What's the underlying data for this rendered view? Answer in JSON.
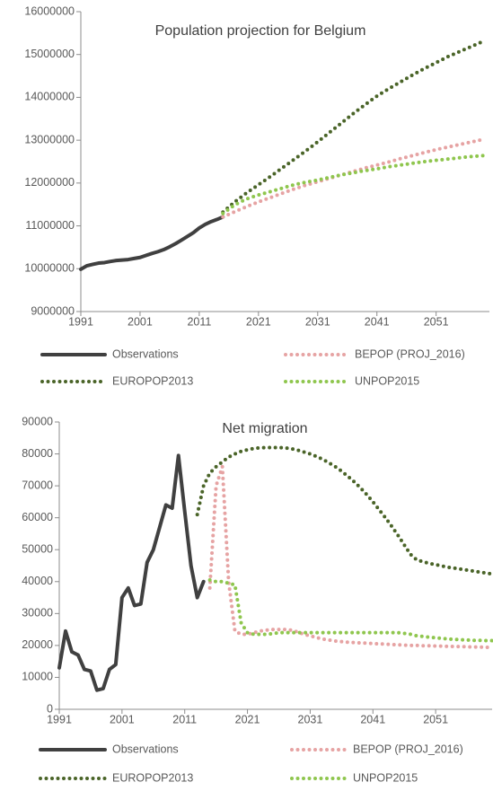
{
  "chart_data": [
    {
      "type": "line",
      "title": "Population projection for Belgium",
      "xlim": [
        1991,
        2060
      ],
      "xticks": [
        1991,
        2001,
        2011,
        2021,
        2031,
        2041,
        2051
      ],
      "ylim": [
        9000000,
        16000000
      ],
      "yticks": [
        9000000,
        10000000,
        11000000,
        12000000,
        13000000,
        14000000,
        15000000,
        16000000
      ],
      "grid": false,
      "legend": "bottom",
      "series": [
        {
          "name": "Observations",
          "color": "#404040",
          "line_style": "solid",
          "x": [
            1991,
            1992,
            1993,
            1994,
            1995,
            1996,
            1997,
            1998,
            1999,
            2000,
            2001,
            2002,
            2003,
            2004,
            2005,
            2006,
            2007,
            2008,
            2009,
            2010,
            2011,
            2012,
            2013,
            2014,
            2015
          ],
          "values": [
            9987000,
            10068000,
            10101000,
            10131000,
            10143000,
            10170000,
            10192000,
            10203000,
            10214000,
            10239000,
            10263000,
            10310000,
            10356000,
            10396000,
            10446000,
            10511000,
            10585000,
            10667000,
            10753000,
            10840000,
            10951000,
            11035000,
            11099000,
            11150000,
            11209000
          ]
        },
        {
          "name": "BEPOP (PROJ_2016)",
          "color": "#e6a3a3",
          "line_style": "dotted",
          "x": [
            2015,
            2017,
            2019,
            2021,
            2023,
            2025,
            2027,
            2029,
            2031,
            2033,
            2035,
            2037,
            2039,
            2041,
            2043,
            2045,
            2047,
            2049,
            2051,
            2053,
            2055,
            2057,
            2059
          ],
          "values": [
            11209000,
            11330000,
            11450000,
            11560000,
            11660000,
            11760000,
            11860000,
            11950000,
            12030000,
            12110000,
            12190000,
            12270000,
            12350000,
            12420000,
            12490000,
            12570000,
            12640000,
            12710000,
            12780000,
            12840000,
            12900000,
            12960000,
            13020000
          ]
        },
        {
          "name": "EUROPOP2013",
          "color": "#4a6428",
          "line_style": "dotted",
          "x": [
            2015,
            2017,
            2019,
            2021,
            2023,
            2025,
            2027,
            2029,
            2031,
            2033,
            2035,
            2037,
            2039,
            2041,
            2043,
            2045,
            2047,
            2049,
            2051,
            2053,
            2055,
            2057,
            2059
          ],
          "values": [
            11320000,
            11560000,
            11770000,
            11960000,
            12150000,
            12350000,
            12550000,
            12750000,
            12960000,
            13180000,
            13400000,
            13620000,
            13830000,
            14030000,
            14200000,
            14360000,
            14520000,
            14670000,
            14810000,
            14950000,
            15070000,
            15190000,
            15310000
          ]
        },
        {
          "name": "UNPOP2015",
          "color": "#8fc64e",
          "line_style": "dotted",
          "x": [
            2015,
            2017,
            2019,
            2021,
            2023,
            2025,
            2027,
            2029,
            2031,
            2033,
            2035,
            2037,
            2039,
            2041,
            2043,
            2045,
            2047,
            2049,
            2051,
            2053,
            2055,
            2057,
            2059
          ],
          "values": [
            11290000,
            11490000,
            11630000,
            11720000,
            11800000,
            11880000,
            11960000,
            12020000,
            12070000,
            12130000,
            12190000,
            12240000,
            12290000,
            12330000,
            12380000,
            12420000,
            12460000,
            12500000,
            12530000,
            12560000,
            12590000,
            12620000,
            12640000
          ]
        }
      ]
    },
    {
      "type": "line",
      "title": "Net migration",
      "xlim": [
        1991,
        2060
      ],
      "xticks": [
        1991,
        2001,
        2011,
        2021,
        2031,
        2041,
        2051
      ],
      "ylim": [
        0,
        90000
      ],
      "yticks": [
        0,
        10000,
        20000,
        30000,
        40000,
        50000,
        60000,
        70000,
        80000,
        90000
      ],
      "grid": false,
      "legend": "bottom",
      "series": [
        {
          "name": "Observations",
          "color": "#404040",
          "line_style": "solid",
          "x": [
            1991,
            1992,
            1993,
            1994,
            1995,
            1996,
            1997,
            1998,
            1999,
            2000,
            2001,
            2002,
            2003,
            2004,
            2005,
            2006,
            2007,
            2008,
            2009,
            2010,
            2011,
            2012,
            2013,
            2014
          ],
          "values": [
            13000,
            24500,
            18000,
            17000,
            12500,
            12000,
            6000,
            6500,
            12500,
            14000,
            35000,
            38000,
            32500,
            33000,
            46000,
            50000,
            57000,
            64000,
            63000,
            79500,
            62000,
            45000,
            35000,
            40000
          ]
        },
        {
          "name": "BEPOP (PROJ_2016)",
          "color": "#e6a3a3",
          "line_style": "dotted",
          "x": [
            2015,
            2016,
            2017,
            2018,
            2019,
            2020,
            2021,
            2022,
            2023,
            2024,
            2025,
            2026,
            2027,
            2028,
            2029,
            2030,
            2031,
            2032,
            2033,
            2034,
            2035,
            2036,
            2037,
            2038,
            2039,
            2040,
            2041,
            2042,
            2043,
            2044,
            2045,
            2046,
            2047,
            2048,
            2049,
            2050,
            2051,
            2052,
            2053,
            2054,
            2055,
            2056,
            2057,
            2058,
            2059,
            2060
          ],
          "values": [
            38000,
            70000,
            76000,
            40000,
            24500,
            23500,
            23500,
            24000,
            24500,
            24800,
            25000,
            25000,
            25000,
            24800,
            24200,
            23500,
            23000,
            22500,
            22000,
            21700,
            21400,
            21200,
            21000,
            20900,
            20800,
            20700,
            20600,
            20500,
            20400,
            20300,
            20200,
            20100,
            20000,
            20000,
            19900,
            19900,
            19800,
            19800,
            19700,
            19700,
            19600,
            19600,
            19500,
            19500,
            19400,
            19400
          ]
        },
        {
          "name": "EUROPOP2013",
          "color": "#4a6428",
          "line_style": "dotted",
          "x": [
            2013,
            2014,
            2015,
            2016,
            2017,
            2018,
            2019,
            2020,
            2021,
            2022,
            2023,
            2024,
            2025,
            2026,
            2027,
            2028,
            2029,
            2030,
            2031,
            2032,
            2033,
            2034,
            2035,
            2036,
            2037,
            2038,
            2039,
            2040,
            2041,
            2042,
            2043,
            2044,
            2045,
            2046,
            2047,
            2048,
            2049,
            2050,
            2051,
            2052,
            2053,
            2054,
            2055,
            2056,
            2057,
            2058,
            2059,
            2060
          ],
          "values": [
            61000,
            70000,
            74000,
            76000,
            77500,
            79000,
            80000,
            80800,
            81300,
            81700,
            81900,
            82000,
            82000,
            82000,
            81900,
            81600,
            81200,
            80600,
            80000,
            79200,
            78300,
            77200,
            76000,
            74600,
            73000,
            71300,
            69400,
            67300,
            65000,
            62500,
            60000,
            57300,
            54500,
            51500,
            48500,
            46800,
            46200,
            45700,
            45300,
            44900,
            44500,
            44200,
            43900,
            43600,
            43300,
            43000,
            42700,
            42400
          ]
        },
        {
          "name": "UNPOP2015",
          "color": "#8fc64e",
          "line_style": "dotted",
          "x": [
            2015,
            2016,
            2017,
            2018,
            2019,
            2020,
            2021,
            2022,
            2023,
            2024,
            2025,
            2026,
            2027,
            2028,
            2029,
            2030,
            2031,
            2032,
            2033,
            2034,
            2035,
            2036,
            2037,
            2038,
            2039,
            2040,
            2041,
            2042,
            2043,
            2044,
            2045,
            2046,
            2047,
            2048,
            2049,
            2050,
            2051,
            2052,
            2053,
            2054,
            2055,
            2056,
            2057,
            2058,
            2059,
            2060
          ],
          "values": [
            40500,
            40000,
            40000,
            39500,
            39000,
            27000,
            24000,
            23500,
            23500,
            23500,
            23700,
            24000,
            24000,
            24000,
            24000,
            24000,
            24000,
            24000,
            24000,
            24000,
            24000,
            24000,
            24000,
            24000,
            24000,
            24000,
            24000,
            24000,
            24000,
            24000,
            24000,
            23800,
            23500,
            23000,
            22800,
            22600,
            22400,
            22200,
            22000,
            21900,
            21800,
            21700,
            21600,
            21600,
            21500,
            21500
          ]
        }
      ]
    }
  ]
}
